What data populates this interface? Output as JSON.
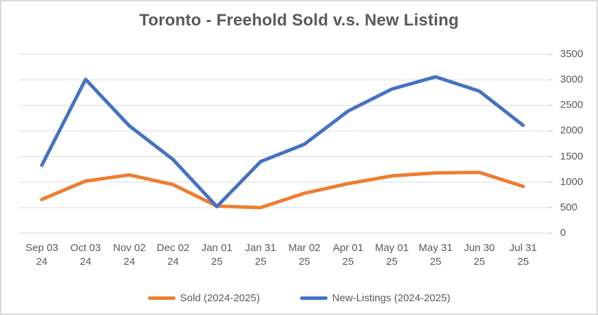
{
  "chart_data": {
    "type": "line",
    "title": "Toronto - Freehold Sold v.s. New Listing",
    "categories": [
      [
        "Sep 03",
        "24"
      ],
      [
        "Oct 03",
        "24"
      ],
      [
        "Nov 02",
        "24"
      ],
      [
        "Dec 02",
        "24"
      ],
      [
        "Jan 01",
        "25"
      ],
      [
        "Jan 31",
        "25"
      ],
      [
        "Mar 02",
        "25"
      ],
      [
        "Apr 01",
        "25"
      ],
      [
        "May 01",
        "25"
      ],
      [
        "May 31",
        "25"
      ],
      [
        "Jun 30",
        "25"
      ],
      [
        "Jul 31",
        "25"
      ]
    ],
    "series": [
      {
        "key": "sold",
        "name": "Sold (2024-2025)",
        "color": "#ED7D31",
        "values": [
          660,
          1020,
          1140,
          950,
          530,
          500,
          780,
          970,
          1120,
          1180,
          1190,
          915
        ]
      },
      {
        "key": "new-listings",
        "name": "New-Listings (2024-2025)",
        "color": "#4472C4",
        "values": [
          1330,
          3010,
          2100,
          1440,
          520,
          1400,
          1740,
          2390,
          2820,
          3060,
          2780,
          2110
        ]
      }
    ],
    "y_axis": {
      "min": 0,
      "max": 3500,
      "step": 500,
      "side": "right",
      "tick_labels": [
        "0",
        "500",
        "1000",
        "1500",
        "2000",
        "2500",
        "3000",
        "3500"
      ]
    },
    "grid": true,
    "legend_position": "bottom",
    "colors": {
      "title_text": "#595959",
      "axis_text": "#595959",
      "gridline": "#D9D9D9",
      "axis_tick": "#BFBFBF",
      "border": "#D9D9D9"
    }
  }
}
